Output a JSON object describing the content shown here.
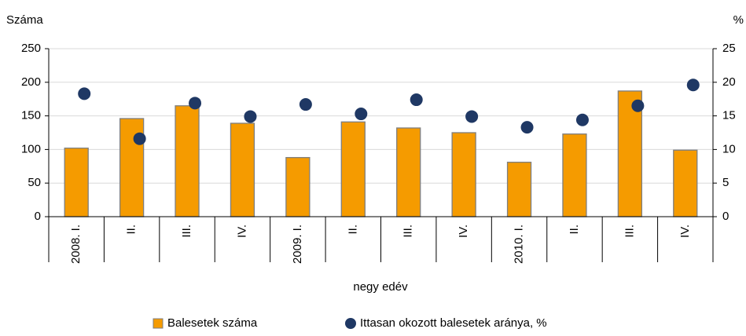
{
  "chart_data": {
    "type": "bar",
    "y_label": "Száma",
    "y2_label": "%",
    "x_label": "negy edév",
    "categories": [
      "2008. I.",
      "II.",
      "III.",
      "IV.",
      "2009. I.",
      "II.",
      "III.",
      "IV.",
      "2010. I.",
      "II.",
      "III.",
      "IV."
    ],
    "series": [
      {
        "name": "Balesetek száma",
        "type": "bar",
        "color": "#f59b00",
        "values": [
          102,
          146,
          165,
          139,
          88,
          141,
          132,
          125,
          81,
          123,
          187,
          99
        ]
      },
      {
        "name": "Ittasan okozott balesetek aránya, %",
        "type": "scatter",
        "axis": "y2",
        "color": "#1f3864",
        "values": [
          18.3,
          11.6,
          16.9,
          14.9,
          16.7,
          15.3,
          17.4,
          14.9,
          13.3,
          14.4,
          16.5,
          19.6
        ]
      }
    ],
    "ylim": [
      0,
      250
    ],
    "yticks": [
      0,
      50,
      100,
      150,
      200,
      250
    ],
    "y2lim": [
      0,
      25
    ],
    "y2ticks": [
      0,
      5,
      10,
      15,
      20,
      25
    ],
    "grid": true
  }
}
